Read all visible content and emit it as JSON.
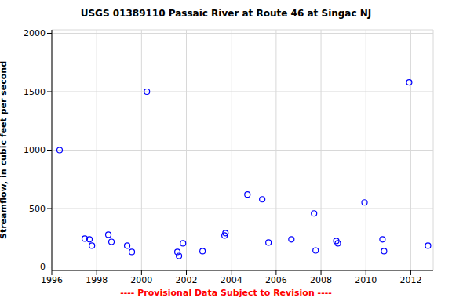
{
  "chart_data": {
    "type": "scatter",
    "title": "USGS 01389110 Passaic River at Route 46 at Singac NJ",
    "y_label": "Streamflow, in cubic feet per second",
    "annotation": "---- Provisional Data Subject to Revision ----",
    "x": [
      1996.35,
      1997.47,
      1997.68,
      1997.79,
      1998.52,
      1998.66,
      1999.36,
      1999.57,
      2000.24,
      2001.6,
      2001.67,
      2001.85,
      2002.72,
      2003.7,
      2003.74,
      2004.72,
      2005.38,
      2005.66,
      2006.68,
      2007.69,
      2007.76,
      2008.68,
      2008.75,
      2009.94,
      2010.74,
      2010.81,
      2011.93,
      2012.77
    ],
    "values": [
      1000,
      242,
      236,
      182,
      276,
      215,
      182,
      128,
      1500,
      128,
      94,
      202,
      135,
      269,
      290,
      620,
      579,
      209,
      236,
      458,
      141,
      222,
      202,
      552,
      236,
      135,
      1580,
      182
    ],
    "color": "#0000ff",
    "marker": "circle",
    "xlim": [
      1996,
      2013
    ],
    "ylim": [
      -30,
      2030
    ],
    "xticks": [
      1996,
      1998,
      2000,
      2002,
      2004,
      2006,
      2008,
      2010,
      2012
    ],
    "yticks": [
      0,
      500,
      1000,
      1500,
      2000
    ],
    "grid": true
  }
}
